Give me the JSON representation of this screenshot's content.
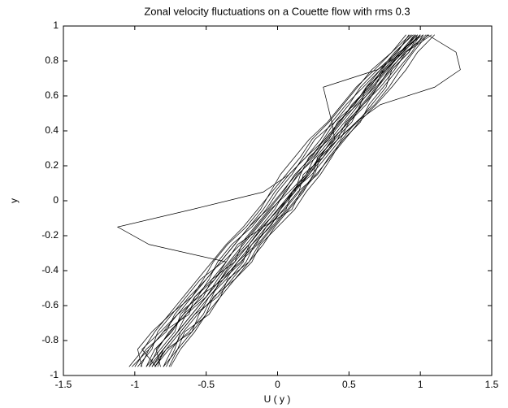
{
  "chart_data": {
    "type": "line",
    "title": "Zonal velocity fluctuations on a Couette flow with rms  0.3",
    "x_label": "U ( y )",
    "y_label": "y",
    "xlim": [
      -1.5,
      1.5
    ],
    "ylim": [
      -1,
      1
    ],
    "xticks": [
      -1.5,
      -1,
      -0.5,
      0,
      0.5,
      1,
      1.5
    ],
    "yticks": [
      -1,
      -0.8,
      -0.6,
      -0.4,
      -0.2,
      0,
      0.2,
      0.4,
      0.6,
      0.8,
      1
    ],
    "grid": false,
    "color": "#000000",
    "y": [
      -0.95,
      -0.85,
      -0.75,
      -0.65,
      -0.55,
      -0.45,
      -0.35,
      -0.25,
      -0.15,
      -0.05,
      0.05,
      0.15,
      0.25,
      0.35,
      0.45,
      0.55,
      0.65,
      0.75,
      0.85,
      0.95
    ],
    "series": [
      {
        "values": [
          -0.9,
          -0.8,
          -0.7,
          -0.6,
          -0.5,
          -0.42,
          -0.33,
          -0.22,
          -0.12,
          -0.02,
          0.05,
          0.15,
          0.25,
          0.35,
          0.45,
          0.55,
          0.66,
          0.76,
          0.88,
          1.0
        ]
      },
      {
        "values": [
          -0.85,
          -0.95,
          -0.82,
          -0.7,
          -0.55,
          -0.38,
          -0.25,
          -0.18,
          -0.05,
          0.02,
          0.1,
          0.22,
          0.3,
          0.38,
          0.5,
          0.62,
          0.7,
          0.8,
          0.92,
          0.98
        ]
      },
      {
        "values": [
          -0.8,
          -0.7,
          -0.65,
          -0.48,
          -0.4,
          -0.35,
          -0.2,
          -0.1,
          -0.02,
          0.08,
          0.18,
          0.25,
          0.28,
          0.4,
          0.52,
          0.58,
          0.62,
          0.72,
          0.85,
          1.02
        ]
      },
      {
        "values": [
          -1.0,
          -0.92,
          -0.78,
          -0.72,
          -0.62,
          -0.5,
          -0.4,
          -0.3,
          -0.2,
          -0.1,
          -0.02,
          0.08,
          0.2,
          0.3,
          0.38,
          0.48,
          0.6,
          0.72,
          0.82,
          0.95
        ]
      },
      {
        "values": [
          -0.75,
          -0.68,
          -0.58,
          -0.5,
          -0.45,
          -0.3,
          -0.18,
          -0.12,
          0.0,
          0.12,
          0.2,
          0.3,
          0.38,
          0.45,
          0.55,
          0.68,
          0.78,
          0.86,
          0.95,
          1.05
        ]
      },
      {
        "values": [
          -0.95,
          -0.98,
          -0.88,
          -0.75,
          -0.6,
          -0.52,
          -0.45,
          -0.35,
          -0.22,
          -0.12,
          -0.05,
          0.02,
          0.12,
          0.22,
          0.35,
          0.45,
          0.55,
          0.68,
          0.8,
          0.9
        ]
      },
      {
        "values": [
          -0.88,
          -0.78,
          -0.6,
          -0.55,
          -0.48,
          -0.36,
          -0.28,
          -0.15,
          -0.08,
          0.05,
          0.15,
          0.18,
          0.32,
          0.42,
          0.48,
          0.6,
          0.72,
          0.82,
          0.9,
          1.08
        ]
      },
      {
        "values": [
          -0.82,
          -0.85,
          -0.75,
          -0.66,
          -0.52,
          -0.46,
          -0.3,
          -0.25,
          -0.15,
          -0.05,
          0.08,
          0.2,
          0.26,
          0.34,
          0.44,
          0.52,
          0.64,
          0.75,
          0.88,
          0.96
        ]
      },
      {
        "values": [
          -1.02,
          -0.9,
          -0.8,
          -0.62,
          -0.58,
          -0.44,
          -0.36,
          -0.28,
          -0.1,
          0.0,
          0.12,
          0.16,
          0.22,
          0.36,
          0.42,
          0.56,
          0.68,
          0.74,
          0.86,
          1.0
        ]
      },
      {
        "values": [
          -0.78,
          -0.72,
          -0.68,
          -0.58,
          -0.42,
          -0.32,
          -0.22,
          -0.16,
          -0.06,
          0.04,
          0.14,
          0.28,
          0.36,
          0.46,
          0.58,
          0.64,
          0.74,
          0.84,
          0.94,
          1.02
        ]
      },
      {
        "values": [
          -0.92,
          -0.82,
          -0.72,
          -0.68,
          -0.56,
          -0.48,
          -0.42,
          -0.32,
          -0.18,
          -0.08,
          0.0,
          0.1,
          0.18,
          0.26,
          0.4,
          0.5,
          0.58,
          0.7,
          0.84,
          0.92
        ]
      },
      {
        "values": [
          -0.86,
          -0.76,
          -0.62,
          -0.52,
          -0.46,
          -0.4,
          -0.26,
          -0.14,
          -0.04,
          0.06,
          0.1,
          0.24,
          0.34,
          0.44,
          0.5,
          0.6,
          0.7,
          0.78,
          0.9,
          1.04
        ]
      },
      {
        "values": [
          -0.98,
          -0.88,
          -0.84,
          -0.74,
          -0.64,
          -0.54,
          -0.38,
          -0.26,
          -0.16,
          -0.06,
          0.04,
          0.12,
          0.24,
          0.32,
          0.4,
          0.54,
          0.62,
          0.76,
          0.86,
          0.98
        ]
      },
      {
        "values": [
          -0.8,
          -0.74,
          -0.66,
          -0.56,
          -0.44,
          -0.34,
          -0.24,
          -0.2,
          -0.1,
          0.1,
          0.16,
          0.26,
          0.3,
          0.42,
          0.56,
          0.66,
          0.76,
          0.8,
          0.92,
          1.0
        ]
      },
      {
        "values": [
          -0.9,
          -0.84,
          -0.76,
          -0.64,
          -0.54,
          -0.44,
          -0.34,
          -0.24,
          -0.14,
          -0.04,
          0.06,
          0.14,
          0.27,
          0.37,
          0.47,
          0.57,
          0.67,
          0.77,
          0.87,
          0.97
        ]
      },
      {
        "values": [
          -0.84,
          -0.8,
          -0.7,
          -0.64,
          -0.5,
          -0.4,
          -0.32,
          -0.2,
          -0.11,
          0.01,
          0.11,
          0.21,
          0.29,
          0.39,
          0.49,
          0.59,
          0.69,
          0.79,
          0.89,
          1.06
        ]
      },
      {
        "values": [
          -0.92,
          -0.86,
          -0.74,
          -0.66,
          -0.58,
          -0.46,
          -0.36,
          -0.9,
          -1.12,
          -0.6,
          -0.1,
          0.08,
          0.2,
          0.33,
          0.43,
          0.53,
          0.63,
          0.74,
          0.86,
          0.96
        ]
      },
      {
        "values": [
          -0.88,
          -0.8,
          -0.7,
          -0.6,
          -0.5,
          -0.4,
          -0.3,
          -0.2,
          -0.1,
          0.0,
          0.1,
          0.2,
          0.3,
          0.42,
          0.55,
          0.72,
          1.1,
          1.28,
          1.25,
          1.05
        ]
      },
      {
        "values": [
          -0.86,
          -0.78,
          -0.68,
          -0.58,
          -0.48,
          -0.38,
          -0.28,
          -0.18,
          -0.08,
          0.02,
          0.12,
          0.22,
          0.32,
          0.4,
          0.38,
          0.35,
          0.32,
          0.7,
          0.88,
          1.0
        ]
      },
      {
        "values": [
          -0.96,
          -0.9,
          -0.8,
          -0.7,
          -0.6,
          -0.5,
          -0.4,
          -0.3,
          -0.2,
          -0.07,
          0.03,
          0.13,
          0.23,
          0.33,
          0.43,
          0.53,
          0.65,
          0.73,
          0.83,
          0.94
        ]
      },
      {
        "values": [
          -0.76,
          -0.7,
          -0.6,
          -0.5,
          -0.4,
          -0.3,
          -0.2,
          -0.13,
          -0.03,
          0.07,
          0.17,
          0.27,
          0.37,
          0.47,
          0.57,
          0.69,
          0.8,
          0.9,
          0.98,
          1.1
        ]
      },
      {
        "values": [
          -1.04,
          -0.94,
          -0.86,
          -0.76,
          -0.66,
          -0.56,
          -0.46,
          -0.36,
          -0.24,
          -0.14,
          -0.04,
          0.06,
          0.16,
          0.24,
          0.36,
          0.46,
          0.56,
          0.66,
          0.8,
          0.93
        ]
      }
    ]
  }
}
